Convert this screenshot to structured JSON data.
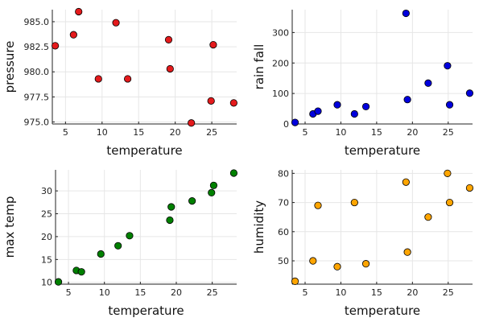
{
  "chart_data": [
    {
      "type": "scatter",
      "xlabel": "temperature",
      "ylabel": "pressure",
      "xlim": [
        3.2,
        28.4
      ],
      "ylim": [
        974.8,
        986.2
      ],
      "xticks": [
        5,
        10,
        15,
        20,
        25
      ],
      "yticks": [
        975.0,
        977.5,
        980.0,
        982.5,
        985.0
      ],
      "ytick_labels": [
        "975.0",
        "977.5",
        "980.0",
        "982.5",
        "985.0"
      ],
      "grid": true,
      "color": "#e41a1c",
      "x": [
        3.6,
        6.1,
        6.8,
        9.5,
        11.9,
        13.5,
        19.1,
        19.3,
        22.2,
        24.9,
        25.2,
        28.0
      ],
      "y": [
        982.6,
        983.7,
        986.0,
        979.3,
        984.9,
        979.3,
        983.2,
        980.3,
        974.9,
        977.1,
        982.7,
        976.9
      ]
    },
    {
      "type": "scatter",
      "xlabel": "temperature",
      "ylabel": "rain fall",
      "xlim": [
        3.2,
        28.4
      ],
      "ylim": [
        0,
        375
      ],
      "xticks": [
        5,
        10,
        15,
        20,
        25
      ],
      "yticks": [
        0,
        100,
        200,
        300
      ],
      "ytick_labels": [
        "0",
        "100",
        "200",
        "300"
      ],
      "grid": true,
      "color": "#0000dd",
      "x": [
        3.6,
        6.1,
        6.8,
        9.5,
        11.9,
        13.5,
        19.1,
        19.3,
        22.2,
        24.9,
        25.2,
        28.0
      ],
      "y": [
        5,
        33,
        42,
        63,
        33,
        57,
        363,
        80,
        134,
        191,
        63,
        101
      ]
    },
    {
      "type": "scatter",
      "xlabel": "temperature",
      "ylabel": "max temp",
      "xlim": [
        3.2,
        28.4
      ],
      "ylim": [
        9.6,
        34.6
      ],
      "xticks": [
        5,
        10,
        15,
        20,
        25
      ],
      "yticks": [
        10,
        15,
        20,
        25,
        30
      ],
      "ytick_labels": [
        "10",
        "15",
        "20",
        "25",
        "30"
      ],
      "grid": true,
      "color": "#008000",
      "x": [
        3.6,
        6.1,
        6.8,
        9.5,
        11.9,
        13.5,
        19.1,
        19.3,
        22.2,
        24.9,
        25.2,
        28.0
      ],
      "y": [
        10.1,
        12.6,
        12.3,
        16.2,
        18.0,
        20.2,
        23.6,
        26.5,
        27.8,
        29.6,
        31.2,
        33.9
      ]
    },
    {
      "type": "scatter",
      "xlabel": "temperature",
      "ylabel": "humidity",
      "xlim": [
        3.2,
        28.4
      ],
      "ylim": [
        42,
        81.2
      ],
      "xticks": [
        5,
        10,
        15,
        20,
        25
      ],
      "yticks": [
        50,
        60,
        70,
        80
      ],
      "ytick_labels": [
        "50",
        "60",
        "70",
        "80"
      ],
      "grid": true,
      "color": "#ffa500",
      "x": [
        3.6,
        6.1,
        6.8,
        9.5,
        11.9,
        13.5,
        19.1,
        19.3,
        22.2,
        24.9,
        25.2,
        28.0
      ],
      "y": [
        43,
        50,
        69,
        48,
        70,
        49,
        77,
        53,
        65,
        80,
        70,
        75
      ]
    }
  ]
}
